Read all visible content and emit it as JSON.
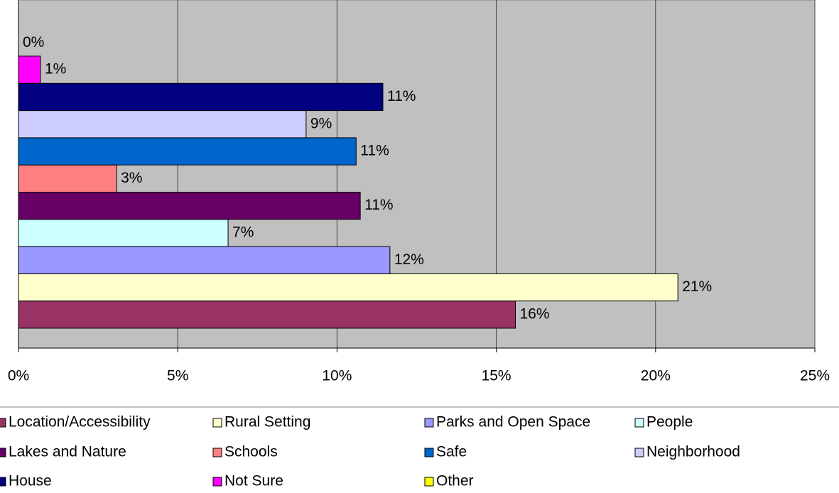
{
  "chart_data": {
    "type": "bar",
    "orientation": "horizontal",
    "series": [
      {
        "name": "Location/Accessibility",
        "color": "#993366",
        "values": [
          15.6
        ],
        "value_labels": [
          "16%"
        ]
      },
      {
        "name": "Rural Setting",
        "color": "#FFFFCC",
        "values": [
          20.7
        ],
        "value_labels": [
          "21%"
        ]
      },
      {
        "name": "Parks and Open Space",
        "color": "#9999FF",
        "values": [
          11.66
        ],
        "value_labels": [
          "12%"
        ]
      },
      {
        "name": "People",
        "color": "#CCFFFF",
        "values": [
          6.58
        ],
        "value_labels": [
          "7%"
        ]
      },
      {
        "name": "Lakes and Nature",
        "color": "#660066",
        "values": [
          10.73
        ],
        "value_labels": [
          "11%"
        ]
      },
      {
        "name": "Schools",
        "color": "#FF8080",
        "values": [
          3.08
        ],
        "value_labels": [
          "3%"
        ]
      },
      {
        "name": "Safe",
        "color": "#0066CC",
        "values": [
          10.6
        ],
        "value_labels": [
          "11%"
        ]
      },
      {
        "name": "Neighborhood",
        "color": "#CCCCFF",
        "values": [
          9.03
        ],
        "value_labels": [
          "9%"
        ]
      },
      {
        "name": "House",
        "color": "#000080",
        "values": [
          11.44
        ],
        "value_labels": [
          "11%"
        ]
      },
      {
        "name": "Not Sure",
        "color": "#FF00FF",
        "values": [
          0.69
        ],
        "value_labels": [
          "1%"
        ]
      },
      {
        "name": "Other",
        "color": "#FFFF00",
        "values": [
          0
        ],
        "value_labels": [
          "0%"
        ]
      }
    ],
    "xlim": [
      0,
      25
    ],
    "xticks": [
      {
        "value": 0,
        "label": "0%"
      },
      {
        "value": 5,
        "label": "5%"
      },
      {
        "value": 10,
        "label": "10%"
      },
      {
        "value": 15,
        "label": "15%"
      },
      {
        "value": 20,
        "label": "20%"
      },
      {
        "value": 25,
        "label": "25%"
      }
    ],
    "grid": true,
    "background": "#C0C0C0",
    "legend": "bottom"
  }
}
